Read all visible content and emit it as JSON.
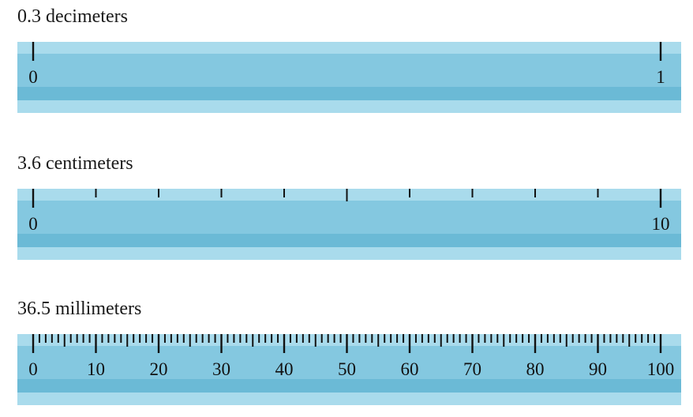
{
  "rulers": [
    {
      "label": "0.3 decimeters",
      "max": 1,
      "major_step": 1,
      "minor_per_major": 0,
      "tick_labels": [
        "0",
        "1"
      ]
    },
    {
      "label": "3.6 centimeters",
      "max": 10,
      "major_step": 10,
      "minor_per_major": 10,
      "tick_labels": [
        "0",
        "10"
      ]
    },
    {
      "label": "36.5 millimeters",
      "max": 100,
      "major_step": 10,
      "minor_per_major": 10,
      "tick_labels": [
        "0",
        "10",
        "20",
        "30",
        "40",
        "50",
        "60",
        "70",
        "80",
        "90",
        "100"
      ]
    }
  ],
  "colors": {
    "ruler_light": "#a9dbec",
    "ruler_main": "#84c8e0",
    "ruler_dark": "#6bbad6",
    "tick": "#111111"
  }
}
